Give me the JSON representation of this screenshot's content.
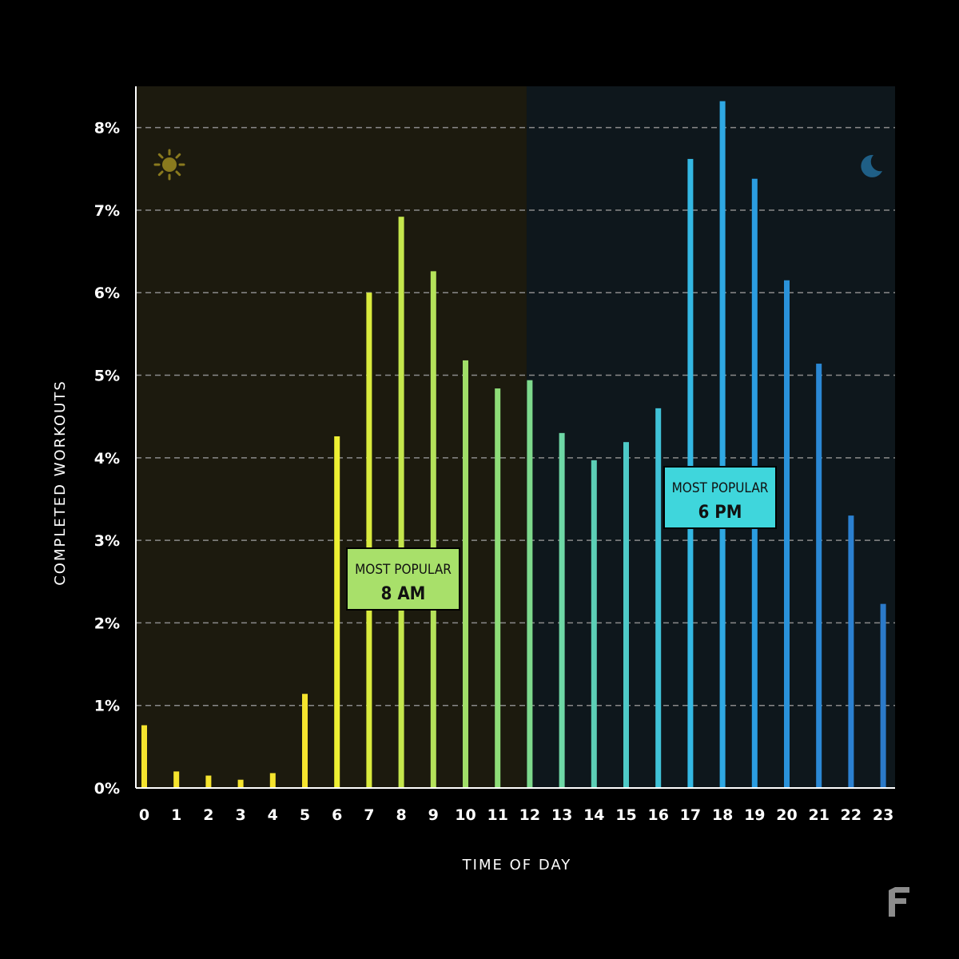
{
  "colors": {
    "background": "#000000",
    "morning_region": "#1c1a0e",
    "evening_region": "#0e171c",
    "grid": "#8a8a8a",
    "sun": "#8a7a1e",
    "moon": "#1f5f86",
    "am_callout": "#a8e06a",
    "pm_callout": "#3fd6dc",
    "logo": "#8c8c8c"
  },
  "icons": {
    "morning": "sun-icon",
    "evening": "moon-icon",
    "brand": "logo-icon"
  },
  "callouts": [
    {
      "line1": "MOST POPULAR",
      "line2": "8 AM",
      "hour": 8
    },
    {
      "line1": "MOST POPULAR",
      "line2": "6 PM",
      "hour": 18
    }
  ],
  "chart_data": {
    "type": "bar",
    "xlabel": "TIME OF DAY",
    "ylabel": "COMPLETED WORKOUTS",
    "categories": [
      "0",
      "1",
      "2",
      "3",
      "4",
      "5",
      "6",
      "7",
      "8",
      "9",
      "10",
      "11",
      "12",
      "13",
      "14",
      "15",
      "16",
      "17",
      "18",
      "19",
      "20",
      "21",
      "22",
      "23"
    ],
    "values": [
      0.76,
      0.2,
      0.15,
      0.1,
      0.18,
      1.14,
      4.26,
      6.0,
      6.92,
      6.26,
      5.18,
      4.84,
      4.94,
      4.3,
      3.97,
      4.19,
      4.6,
      7.62,
      8.32,
      7.38,
      6.15,
      5.14,
      3.3,
      2.23
    ],
    "bar_colors": [
      "#f5e42e",
      "#f5e42e",
      "#f5e42e",
      "#f5e42e",
      "#f5e42e",
      "#f5e42e",
      "#eef033",
      "#d9eb3e",
      "#c4e64c",
      "#b4e25a",
      "#a0de68",
      "#8edd78",
      "#7ed98c",
      "#6ed8a6",
      "#5ccfb6",
      "#4ecac7",
      "#40c2d7",
      "#34b8e3",
      "#2fa8e3",
      "#2b9ce0",
      "#2a92da",
      "#2b88d4",
      "#2b80d0",
      "#2b7ac9"
    ],
    "y_ticks": [
      "0%",
      "1%",
      "2%",
      "3%",
      "4%",
      "5%",
      "6%",
      "7%",
      "8%"
    ],
    "ylim": [
      0,
      8.5
    ],
    "grid": true,
    "regions": [
      {
        "from": 0,
        "to": 12,
        "name": "morning"
      },
      {
        "from": 12,
        "to": 24,
        "name": "evening"
      }
    ]
  }
}
